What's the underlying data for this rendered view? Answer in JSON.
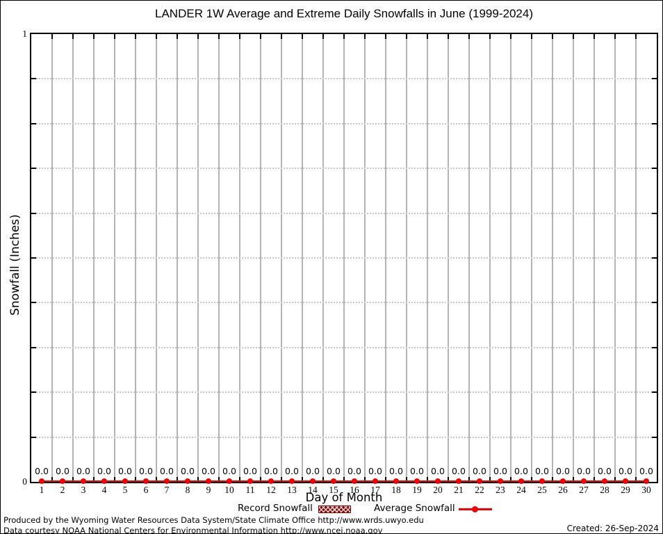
{
  "chart_data": {
    "type": "bar",
    "title": "LANDER 1W Average and Extreme Daily Snowfalls in June (1999-2024)",
    "xlabel": "Day of Month",
    "ylabel": "Snowfall (Inches)",
    "categories": [
      1,
      2,
      3,
      4,
      5,
      6,
      7,
      8,
      9,
      10,
      11,
      12,
      13,
      14,
      15,
      16,
      17,
      18,
      19,
      20,
      21,
      22,
      23,
      24,
      25,
      26,
      27,
      28,
      29,
      30
    ],
    "series": [
      {
        "name": "Record Snowfall",
        "type": "bar",
        "color": "#8b0000",
        "pattern": "crosshatch",
        "values": [
          0,
          0,
          0,
          0,
          0,
          0,
          0,
          0,
          0,
          0,
          0,
          0,
          0,
          0,
          0,
          0,
          0,
          0,
          0,
          0,
          0,
          0,
          0,
          0,
          0,
          0,
          0,
          0,
          0,
          0
        ]
      },
      {
        "name": "Average Snowfall",
        "type": "line",
        "color": "#f40000",
        "marker": "filled-circle",
        "values": [
          0,
          0,
          0,
          0,
          0,
          0,
          0,
          0,
          0,
          0,
          0,
          0,
          0,
          0,
          0,
          0,
          0,
          0,
          0,
          0,
          0,
          0,
          0,
          0,
          0,
          0,
          0,
          0,
          0,
          0
        ]
      }
    ],
    "value_labels": [
      "0.0",
      "0.0",
      "0.0",
      "0.0",
      "0.0",
      "0.0",
      "0.0",
      "0.0",
      "0.0",
      "0.0",
      "0.0",
      "0.0",
      "0.0",
      "0.0",
      "0.0",
      "0.0",
      "0.0",
      "0.0",
      "0.0",
      "0.0",
      "0.0",
      "0.0",
      "0.0",
      "0.0",
      "0.0",
      "0.0",
      "0.0",
      "0.0",
      "0.0",
      "0.0"
    ],
    "ylim": [
      0,
      1
    ],
    "ytick_labels": [
      "0",
      "1"
    ],
    "y_minor_step": 0.1,
    "grid": {
      "vertical": "solid gray line between each day column",
      "horizontal": "dotted gray line every 0.1"
    },
    "legend_position": "bottom"
  },
  "legend": {
    "record_label": "Record Snowfall",
    "average_label": "Average Snowfall"
  },
  "footer": {
    "line1": "Produced by the Wyoming Water Resources Data System/State Climate Office http://www.wrds.uwyo.edu",
    "line2": "Data courtesy NOAA National Centers for Environmental Information http://www.ncei.noaa.gov",
    "created": "Created: 26-Sep-2024"
  }
}
